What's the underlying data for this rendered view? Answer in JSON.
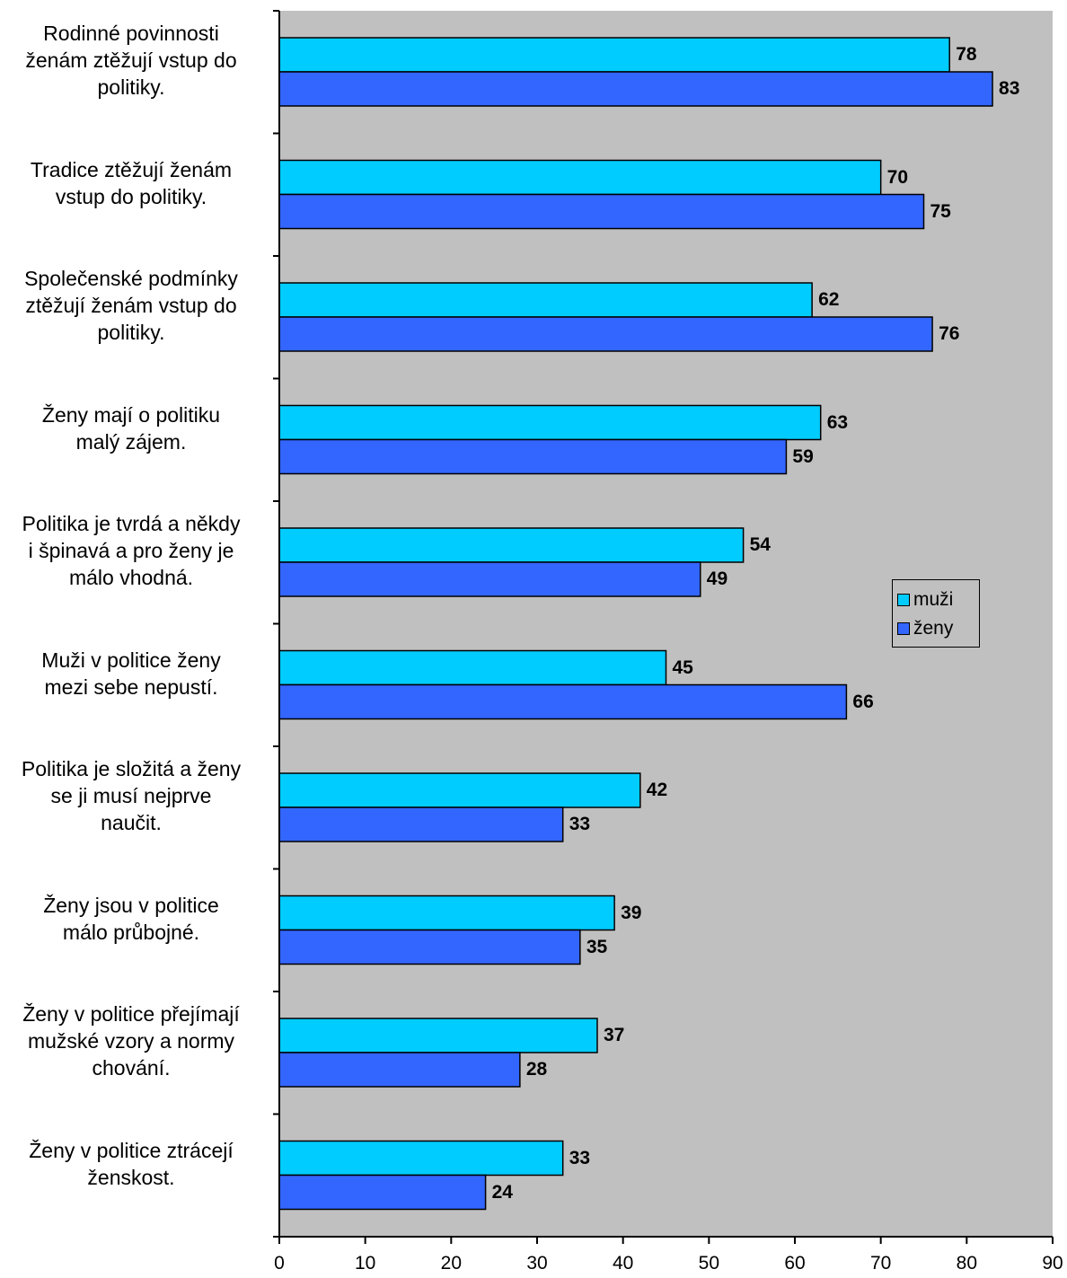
{
  "chart_data": {
    "type": "bar",
    "orientation": "horizontal",
    "categories": [
      "Rodinné povinnosti\nženám ztěžují vstup do\npolitiky.",
      "Tradice ztěžují ženám\nvstup do politiky.",
      "Společenské podmínky\nztěžují ženám vstup do\npolitiky.",
      "Ženy mají o politiku\nmalý zájem.",
      "Politika je tvrdá a někdy\ni špinavá a pro ženy je\nmálo vhodná.",
      "Muži v politice ženy\nmezi sebe nepustí.",
      "Politika je složitá a ženy\nse ji musí nejprve\nnaučit.",
      "Ženy jsou v politice\nmálo průbojné.",
      "Ženy v politice přejímají\nmužské vzory a normy\nchování.",
      "Ženy v politice ztrácejí\nženskost."
    ],
    "series": [
      {
        "name": "muži",
        "color": "#00ccff",
        "values": [
          78,
          70,
          62,
          63,
          54,
          45,
          42,
          39,
          37,
          33
        ]
      },
      {
        "name": "ženy",
        "color": "#3366ff",
        "values": [
          83,
          75,
          76,
          59,
          49,
          66,
          33,
          35,
          28,
          24
        ]
      }
    ],
    "xlim": [
      0,
      90
    ],
    "xticks": [
      "0",
      "10",
      "20",
      "30",
      "40",
      "50",
      "60",
      "70",
      "80",
      "90"
    ],
    "plot_background": "#c0c0c0",
    "legend": "right",
    "grid": false,
    "title": "",
    "xlabel": "",
    "ylabel": ""
  }
}
